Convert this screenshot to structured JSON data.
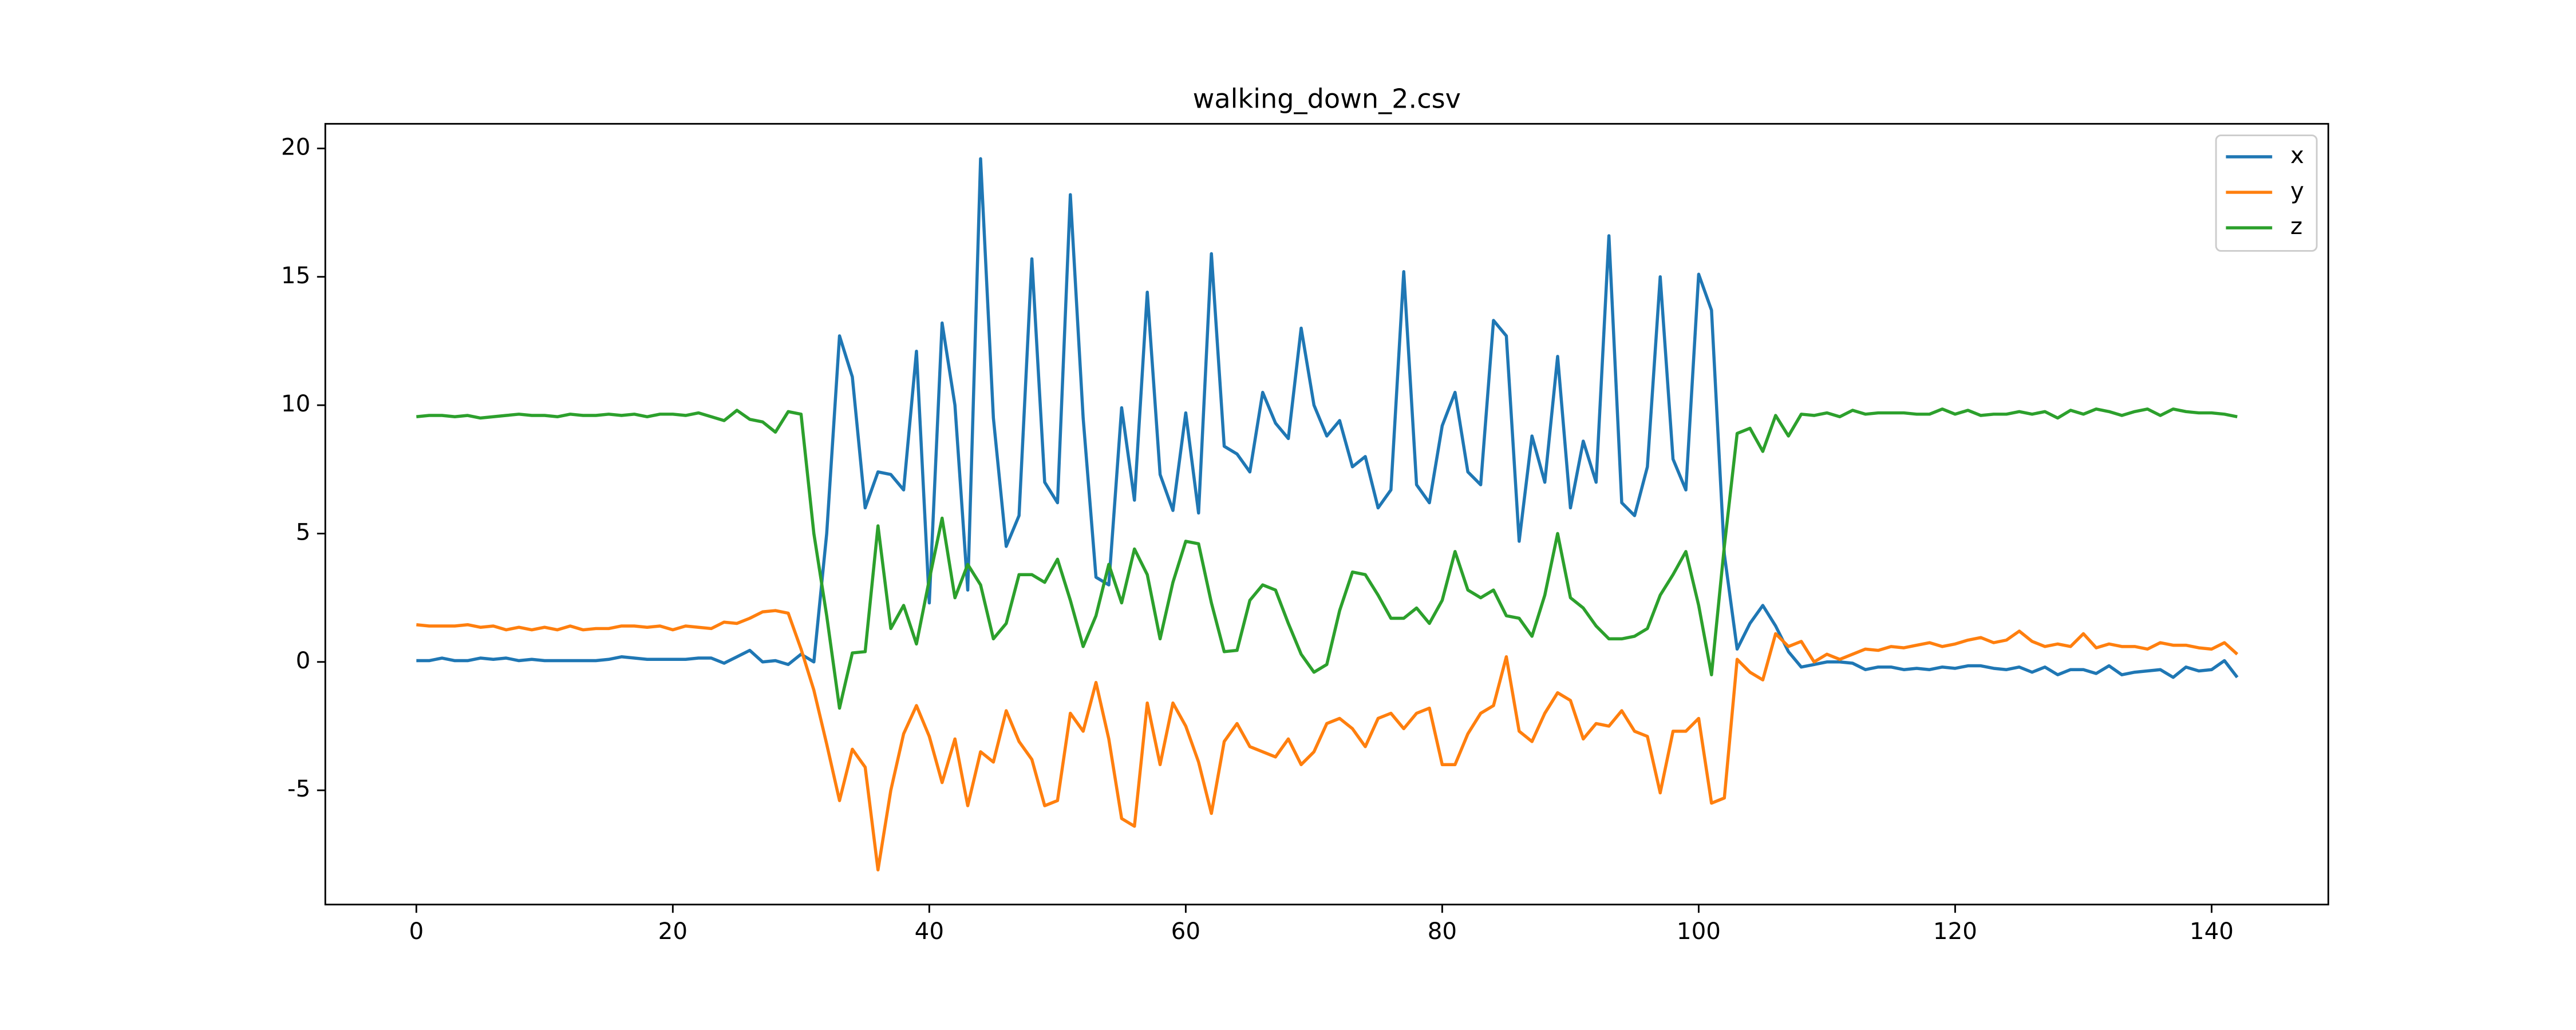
{
  "chart_data": {
    "type": "line",
    "title": "walking_down_2.csv",
    "x": [
      0,
      1,
      2,
      3,
      4,
      5,
      6,
      7,
      8,
      9,
      10,
      11,
      12,
      13,
      14,
      15,
      16,
      17,
      18,
      19,
      20,
      21,
      22,
      23,
      24,
      25,
      26,
      27,
      28,
      29,
      30,
      31,
      32,
      33,
      34,
      35,
      36,
      37,
      38,
      39,
      40,
      41,
      42,
      43,
      44,
      45,
      46,
      47,
      48,
      49,
      50,
      51,
      52,
      53,
      54,
      55,
      56,
      57,
      58,
      59,
      60,
      61,
      62,
      63,
      64,
      65,
      66,
      67,
      68,
      69,
      70,
      71,
      72,
      73,
      74,
      75,
      76,
      77,
      78,
      79,
      80,
      81,
      82,
      83,
      84,
      85,
      86,
      87,
      88,
      89,
      90,
      91,
      92,
      93,
      94,
      95,
      96,
      97,
      98,
      99,
      100,
      101,
      102,
      103,
      104,
      105,
      106,
      107,
      108,
      109,
      110,
      111,
      112,
      113,
      114,
      115,
      116,
      117,
      118,
      119,
      120,
      121,
      122,
      123,
      124,
      125,
      126,
      127,
      128,
      129,
      130,
      131,
      132,
      133,
      134,
      135,
      136,
      137,
      138,
      139,
      140,
      141,
      142
    ],
    "series": [
      {
        "name": "x",
        "color": "#1f77b4",
        "values": [
          0.05,
          0.05,
          0.15,
          0.05,
          0.05,
          0.15,
          0.1,
          0.15,
          0.05,
          0.1,
          0.05,
          0.05,
          0.05,
          0.05,
          0.05,
          0.1,
          0.2,
          0.15,
          0.1,
          0.1,
          0.1,
          0.1,
          0.15,
          0.15,
          -0.05,
          0.2,
          0.45,
          0.0,
          0.05,
          -0.1,
          0.3,
          0.0,
          5.0,
          12.7,
          11.1,
          6.0,
          7.4,
          7.3,
          6.7,
          12.1,
          2.3,
          13.2,
          10.0,
          2.8,
          19.6,
          9.5,
          4.5,
          5.7,
          15.7,
          7.0,
          6.2,
          18.2,
          9.5,
          3.3,
          3.0,
          9.9,
          6.3,
          14.4,
          7.3,
          5.9,
          9.7,
          5.8,
          15.9,
          8.4,
          8.1,
          7.4,
          10.5,
          9.3,
          8.7,
          13.0,
          10.0,
          8.8,
          9.4,
          7.6,
          8.0,
          6.0,
          6.7,
          15.2,
          6.9,
          6.2,
          9.2,
          10.5,
          7.4,
          6.9,
          13.3,
          12.7,
          4.7,
          8.8,
          7.0,
          11.9,
          6.0,
          8.6,
          7.0,
          16.6,
          6.2,
          5.7,
          7.6,
          15.0,
          7.9,
          6.7,
          15.1,
          13.7,
          4.2,
          0.5,
          1.5,
          2.2,
          1.4,
          0.4,
          -0.2,
          -0.1,
          0.0,
          0.0,
          -0.05,
          -0.3,
          -0.2,
          -0.2,
          -0.3,
          -0.25,
          -0.3,
          -0.2,
          -0.25,
          -0.15,
          -0.15,
          -0.25,
          -0.3,
          -0.2,
          -0.4,
          -0.2,
          -0.5,
          -0.3,
          -0.3,
          -0.45,
          -0.15,
          -0.5,
          -0.4,
          -0.35,
          -0.3,
          -0.6,
          -0.2,
          -0.35,
          -0.3,
          0.05,
          -0.6
        ]
      },
      {
        "name": "y",
        "color": "#ff7f0e",
        "values": [
          1.45,
          1.4,
          1.4,
          1.4,
          1.45,
          1.35,
          1.4,
          1.25,
          1.35,
          1.25,
          1.35,
          1.25,
          1.4,
          1.25,
          1.3,
          1.3,
          1.4,
          1.4,
          1.35,
          1.4,
          1.25,
          1.4,
          1.35,
          1.3,
          1.55,
          1.5,
          1.7,
          1.95,
          2.0,
          1.9,
          0.5,
          -1.1,
          -3.2,
          -5.4,
          -3.4,
          -4.1,
          -8.1,
          -5.0,
          -2.8,
          -1.7,
          -2.9,
          -4.7,
          -3.0,
          -5.6,
          -3.5,
          -3.9,
          -1.9,
          -3.1,
          -3.8,
          -5.6,
          -5.4,
          -2.0,
          -2.7,
          -0.8,
          -3.0,
          -6.1,
          -6.4,
          -1.6,
          -4.0,
          -1.6,
          -2.5,
          -3.9,
          -5.9,
          -3.1,
          -2.4,
          -3.3,
          -3.5,
          -3.7,
          -3.0,
          -4.0,
          -3.5,
          -2.4,
          -2.2,
          -2.6,
          -3.3,
          -2.2,
          -2.0,
          -2.6,
          -2.0,
          -1.8,
          -4.0,
          -4.0,
          -2.8,
          -2.0,
          -1.7,
          0.2,
          -2.7,
          -3.1,
          -2.0,
          -1.2,
          -1.5,
          -3.0,
          -2.4,
          -2.5,
          -1.9,
          -2.7,
          -2.9,
          -5.1,
          -2.7,
          -2.7,
          -2.2,
          -5.5,
          -5.3,
          0.1,
          -0.4,
          -0.7,
          1.1,
          0.6,
          0.8,
          0.0,
          0.3,
          0.1,
          0.3,
          0.5,
          0.45,
          0.6,
          0.55,
          0.65,
          0.75,
          0.6,
          0.7,
          0.85,
          0.95,
          0.75,
          0.85,
          1.2,
          0.8,
          0.6,
          0.7,
          0.6,
          1.1,
          0.55,
          0.7,
          0.6,
          0.6,
          0.5,
          0.75,
          0.65,
          0.65,
          0.55,
          0.5,
          0.75,
          0.3
        ]
      },
      {
        "name": "z",
        "color": "#2ca02c",
        "values": [
          9.55,
          9.6,
          9.6,
          9.55,
          9.6,
          9.5,
          9.55,
          9.6,
          9.65,
          9.6,
          9.6,
          9.55,
          9.65,
          9.6,
          9.6,
          9.65,
          9.6,
          9.65,
          9.55,
          9.65,
          9.65,
          9.6,
          9.7,
          9.55,
          9.4,
          9.8,
          9.45,
          9.35,
          8.95,
          9.75,
          9.65,
          5.0,
          1.8,
          -1.8,
          0.35,
          0.4,
          5.3,
          1.3,
          2.2,
          0.7,
          3.2,
          5.6,
          2.5,
          3.8,
          3.0,
          0.9,
          1.5,
          3.4,
          3.4,
          3.1,
          4.0,
          2.4,
          0.6,
          1.8,
          3.8,
          2.3,
          4.4,
          3.4,
          0.9,
          3.1,
          4.7,
          4.6,
          2.3,
          0.4,
          0.45,
          2.4,
          3.0,
          2.8,
          1.5,
          0.3,
          -0.4,
          -0.1,
          2.0,
          3.5,
          3.4,
          2.6,
          1.7,
          1.7,
          2.1,
          1.5,
          2.4,
          4.3,
          2.8,
          2.5,
          2.8,
          1.8,
          1.7,
          1.0,
          2.6,
          5.0,
          2.5,
          2.1,
          1.4,
          0.9,
          0.9,
          1.0,
          1.3,
          2.6,
          3.4,
          4.3,
          2.2,
          -0.5,
          4.5,
          8.9,
          9.1,
          8.2,
          9.6,
          8.8,
          9.65,
          9.6,
          9.7,
          9.55,
          9.8,
          9.65,
          9.7,
          9.7,
          9.7,
          9.65,
          9.65,
          9.85,
          9.65,
          9.8,
          9.6,
          9.65,
          9.65,
          9.75,
          9.65,
          9.75,
          9.5,
          9.8,
          9.65,
          9.85,
          9.75,
          9.6,
          9.75,
          9.85,
          9.6,
          9.85,
          9.75,
          9.7,
          9.7,
          9.65,
          9.55
        ]
      }
    ],
    "xlim": [
      -7.1,
      149.1
    ],
    "ylim": [
      -9.45,
      20.96
    ],
    "xticks": [
      0,
      20,
      40,
      60,
      80,
      100,
      120,
      140
    ],
    "yticks": [
      -5,
      0,
      5,
      10,
      15,
      20
    ],
    "legend": "upper right",
    "grid": false
  }
}
